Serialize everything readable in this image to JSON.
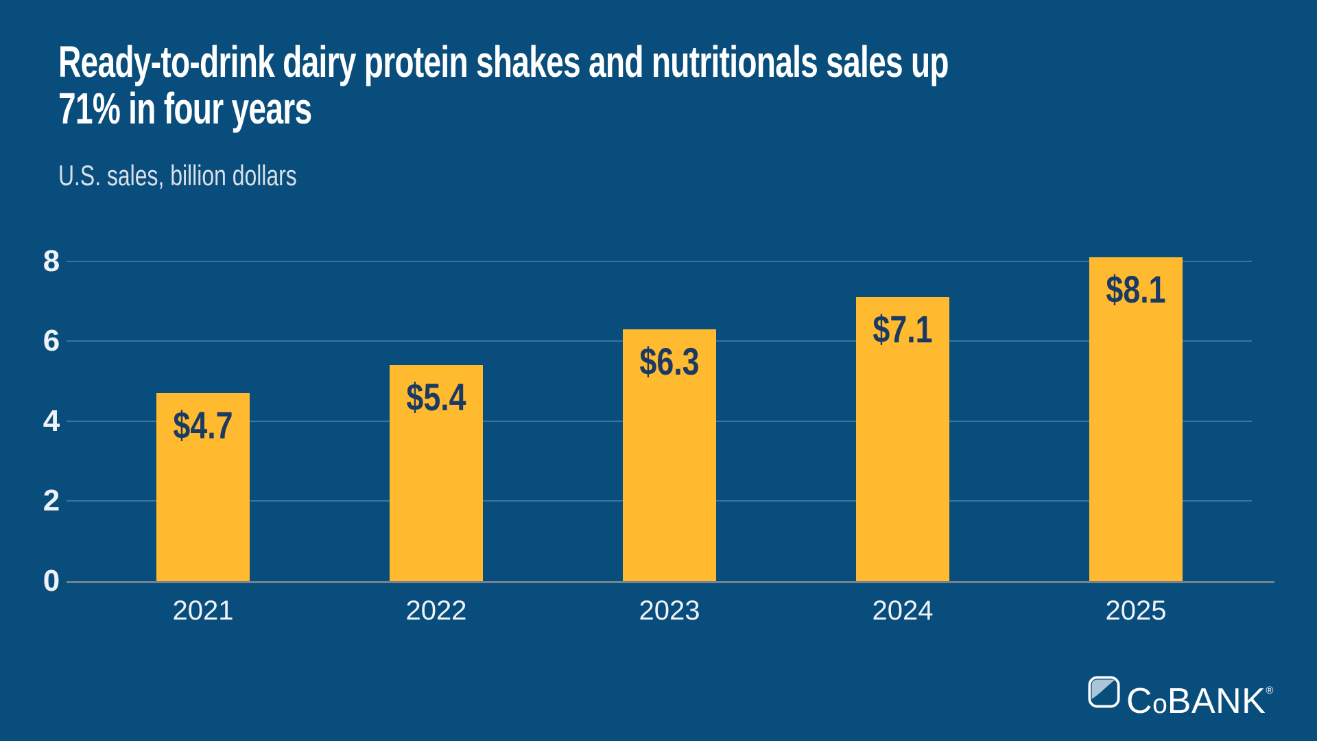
{
  "title": {
    "line1": "Ready-to-drink dairy protein shakes and nutritionals sales up",
    "line2": "71% in four years"
  },
  "subtitle": "U.S. sales, billion dollars",
  "colors": {
    "background": "#084D7C",
    "bar": "#FFBA30",
    "bar_label": "#1B3A63",
    "grid": "rgba(255,255,255,0.22)",
    "axis": "#76838F",
    "title_text": "#FFFFFF",
    "subtitle_text": "#D8E0E8",
    "tick_text": "#EFF3F7",
    "logo_light_blue": "#A9C6D8"
  },
  "chart_data": {
    "type": "bar",
    "title": "Ready-to-drink dairy protein shakes and nutritionals sales up 71% in four years",
    "subtitle": "U.S. sales, billion dollars",
    "categories": [
      "2021",
      "2022",
      "2023",
      "2024",
      "2025"
    ],
    "values": [
      4.7,
      5.4,
      6.3,
      7.1,
      8.1
    ],
    "data_labels": [
      "$4.7",
      "$5.4",
      "$6.3",
      "$7.1",
      "$8.1"
    ],
    "xlabel": "",
    "ylabel": "U.S. sales, billion dollars",
    "ylim": [
      0,
      8
    ],
    "yticks": [
      0,
      2,
      4,
      6,
      8
    ],
    "grid": true,
    "legend": "none",
    "bar_color": "#FFBA30",
    "bar_label_color": "#1B3A63"
  },
  "logo": {
    "name": "CoBANK",
    "c": "C",
    "o": "o",
    "bank": "BANK",
    "reg": "®"
  }
}
